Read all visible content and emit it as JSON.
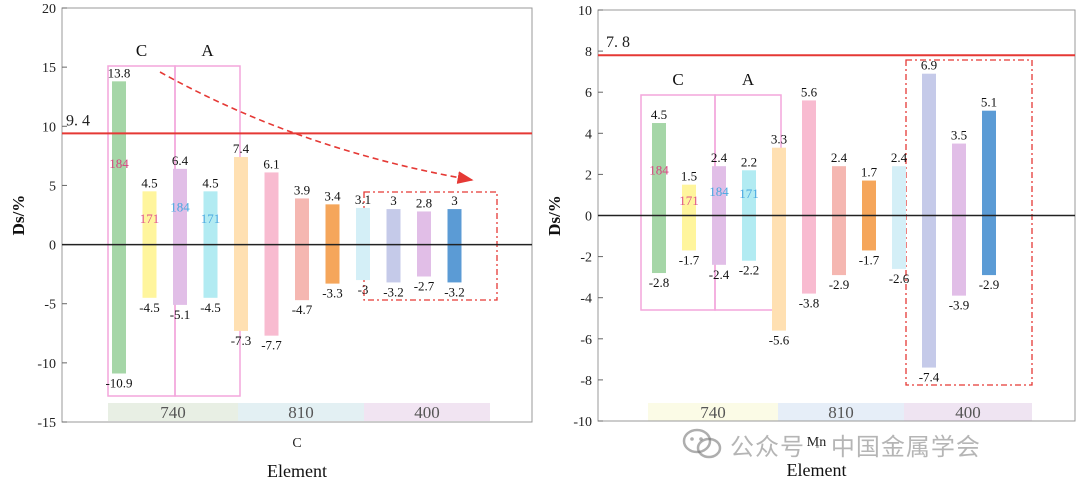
{
  "chart_data": [
    {
      "type": "bar",
      "element": "C",
      "xlabel": "Element",
      "ylabel": "Ds/%",
      "ylim": [
        -15,
        20
      ],
      "yticks": [
        -15,
        -10,
        -5,
        0,
        5,
        10,
        15,
        20
      ],
      "grid": false,
      "reference_line": {
        "value": 9.4,
        "label": "9. 4",
        "color": "#e53935"
      },
      "series": [
        {
          "group": "740",
          "condition": "C",
          "pos": 13.8,
          "neg": -10.9,
          "pos_label": "13.8",
          "neg_label": "-10.9",
          "color": "#a5d6a7",
          "annotation": "184"
        },
        {
          "group": "740",
          "condition": "C",
          "pos": 4.5,
          "neg": -4.5,
          "pos_label": "4.5",
          "neg_label": "-4.5",
          "color": "#fff59d",
          "annotation": "171"
        },
        {
          "group": "740",
          "condition": "A",
          "pos": 6.4,
          "neg": -5.1,
          "pos_label": "6.4",
          "neg_label": "-5.1",
          "color": "#e1bee7",
          "annotation": "184"
        },
        {
          "group": "740",
          "condition": "A",
          "pos": 4.5,
          "neg": -4.5,
          "pos_label": "4.5",
          "neg_label": "-4.5",
          "color": "#b2ebf2",
          "annotation": "171"
        },
        {
          "group": "810",
          "condition": "",
          "pos": 7.4,
          "neg": -7.3,
          "pos_label": "7.4",
          "neg_label": "-7.3",
          "color": "#ffe0b2"
        },
        {
          "group": "810",
          "condition": "",
          "pos": 6.1,
          "neg": -7.7,
          "pos_label": "6.1",
          "neg_label": "-7.7",
          "color": "#f8bbd0"
        },
        {
          "group": "810",
          "condition": "",
          "pos": 3.9,
          "neg": -4.7,
          "pos_label": "3.9",
          "neg_label": "-4.7",
          "color": "#f5b7b1"
        },
        {
          "group": "810",
          "condition": "",
          "pos": 3.4,
          "neg": -3.3,
          "pos_label": "3.4",
          "neg_label": "-3.3",
          "color": "#f5a65b"
        },
        {
          "group": "400",
          "condition": "",
          "pos": 3.1,
          "neg": -3.0,
          "pos_label": "3.1",
          "neg_label": "-3",
          "color": "#d4eff7"
        },
        {
          "group": "400",
          "condition": "",
          "pos": 3.0,
          "neg": -3.2,
          "pos_label": "3",
          "neg_label": "-3.2",
          "color": "#c5cae9"
        },
        {
          "group": "400",
          "condition": "",
          "pos": 2.8,
          "neg": -2.7,
          "pos_label": "2.8",
          "neg_label": "-2.7",
          "color": "#e1bee7"
        },
        {
          "group": "400",
          "condition": "",
          "pos": 3.0,
          "neg": -3.2,
          "pos_label": "3",
          "neg_label": "-3.2",
          "color": "#5b9bd5"
        }
      ],
      "group_labels": [
        "740",
        "810",
        "400"
      ],
      "group_colors": [
        "#e8efe4",
        "#e3f0f3",
        "#f1e4f2"
      ],
      "condition_labels": [
        "C",
        "A"
      ]
    },
    {
      "type": "bar",
      "element": "Mn",
      "xlabel": "Element",
      "ylabel": "Ds/%",
      "ylim": [
        -10,
        10
      ],
      "yticks": [
        -10,
        -8,
        -6,
        -4,
        -2,
        0,
        2,
        4,
        6,
        8,
        10
      ],
      "grid": false,
      "reference_line": {
        "value": 7.8,
        "label": "7. 8",
        "color": "#e53935"
      },
      "series": [
        {
          "group": "740",
          "condition": "C",
          "pos": 4.5,
          "neg": -2.8,
          "pos_label": "4.5",
          "neg_label": "-2.8",
          "color": "#a5d6a7",
          "annotation": "184"
        },
        {
          "group": "740",
          "condition": "C",
          "pos": 1.5,
          "neg": -1.7,
          "pos_label": "1.5",
          "neg_label": "-1.7",
          "color": "#fff59d",
          "annotation": "171"
        },
        {
          "group": "740",
          "condition": "A",
          "pos": 2.4,
          "neg": -2.4,
          "pos_label": "2.4",
          "neg_label": "-2.4",
          "color": "#e1bee7",
          "annotation": "184"
        },
        {
          "group": "740",
          "condition": "A",
          "pos": 2.2,
          "neg": -2.2,
          "pos_label": "2.2",
          "neg_label": "-2.2",
          "color": "#b2ebf2",
          "annotation": "171"
        },
        {
          "group": "810",
          "condition": "",
          "pos": 3.3,
          "neg": -5.6,
          "pos_label": "3.3",
          "neg_label": "-5.6",
          "color": "#ffe0b2"
        },
        {
          "group": "810",
          "condition": "",
          "pos": 5.6,
          "neg": -3.8,
          "pos_label": "5.6",
          "neg_label": "-3.8",
          "color": "#f8bbd0"
        },
        {
          "group": "810",
          "condition": "",
          "pos": 2.4,
          "neg": -2.9,
          "pos_label": "2.4",
          "neg_label": "-2.9",
          "color": "#f5b7b1"
        },
        {
          "group": "810",
          "condition": "",
          "pos": 1.7,
          "neg": -1.7,
          "pos_label": "1.7",
          "neg_label": "-1.7",
          "color": "#f5a65b"
        },
        {
          "group": "400",
          "condition": "",
          "pos": 2.4,
          "neg": -2.6,
          "pos_label": "2.4",
          "neg_label": "-2.6",
          "color": "#d4eff7"
        },
        {
          "group": "400",
          "condition": "",
          "pos": 6.9,
          "neg": -7.4,
          "pos_label": "6.9",
          "neg_label": "-7.4",
          "color": "#c5cae9"
        },
        {
          "group": "400",
          "condition": "",
          "pos": 3.5,
          "neg": -3.9,
          "pos_label": "3.5",
          "neg_label": "-3.9",
          "color": "#e1bee7"
        },
        {
          "group": "400",
          "condition": "",
          "pos": 5.1,
          "neg": -2.9,
          "pos_label": "5.1",
          "neg_label": "-2.9",
          "color": "#5b9bd5"
        }
      ],
      "group_labels": [
        "740",
        "810",
        "400"
      ],
      "group_colors": [
        "#fbfbe6",
        "#e6eef8",
        "#efe4f2"
      ],
      "condition_labels": [
        "C",
        "A"
      ]
    }
  ],
  "colors": {
    "annotation_184": "#d6457e",
    "annotation_171_left": "#e0558a",
    "annotation_184_light": "#49a8e0",
    "box_pink": "#f3a6dc",
    "box_red_dash": "#e53935",
    "zero_line": "#222222"
  },
  "watermark": {
    "text": "公众号 · 中国金属学会",
    "icon": "wechat-icon"
  }
}
